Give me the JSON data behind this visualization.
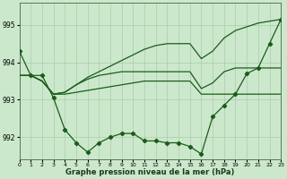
{
  "background_color": "#cce8cc",
  "grid_color": "#aaccaa",
  "line_color": "#1a5c1a",
  "xlabel": "Graphe pression niveau de la mer (hPa)",
  "ylim": [
    991.4,
    995.6
  ],
  "yticks": [
    992,
    993,
    994,
    995
  ],
  "xlim": [
    0,
    23
  ],
  "xticks": [
    0,
    1,
    2,
    3,
    4,
    5,
    6,
    7,
    8,
    9,
    10,
    11,
    12,
    13,
    14,
    15,
    16,
    17,
    18,
    19,
    20,
    21,
    22,
    23
  ],
  "series": {
    "line_dip_marker": [
      994.3,
      993.65,
      993.65,
      993.05,
      992.2,
      991.85,
      991.6,
      991.85,
      992.0,
      992.1,
      992.1,
      991.9,
      991.9,
      991.85,
      991.85,
      991.75,
      991.55,
      992.55,
      992.85,
      993.15,
      993.7,
      993.85,
      994.5,
      995.15
    ],
    "line_flat1": [
      993.65,
      993.65,
      993.5,
      993.15,
      993.15,
      993.2,
      993.25,
      993.3,
      993.35,
      993.4,
      993.45,
      993.5,
      993.5,
      993.5,
      993.5,
      993.5,
      993.15,
      993.15,
      993.15,
      993.15,
      993.15,
      993.15,
      993.15,
      993.15
    ],
    "line_flat2": [
      993.65,
      993.65,
      993.5,
      993.15,
      993.2,
      993.4,
      993.55,
      993.65,
      993.7,
      993.75,
      993.75,
      993.75,
      993.75,
      993.75,
      993.75,
      993.75,
      993.3,
      993.45,
      993.75,
      993.85,
      993.85,
      993.85,
      993.85,
      993.85
    ],
    "line_rise": [
      993.65,
      993.65,
      993.5,
      993.15,
      993.2,
      993.4,
      993.6,
      993.75,
      993.9,
      994.05,
      994.2,
      994.35,
      994.45,
      994.5,
      994.5,
      994.5,
      994.1,
      994.3,
      994.65,
      994.85,
      994.95,
      995.05,
      995.1,
      995.15
    ]
  },
  "marker_indices": [
    0,
    1,
    3,
    4,
    5,
    6,
    7,
    8,
    9,
    10,
    11,
    12,
    13,
    14,
    15,
    16,
    17,
    18,
    19,
    20,
    21,
    22,
    23
  ]
}
